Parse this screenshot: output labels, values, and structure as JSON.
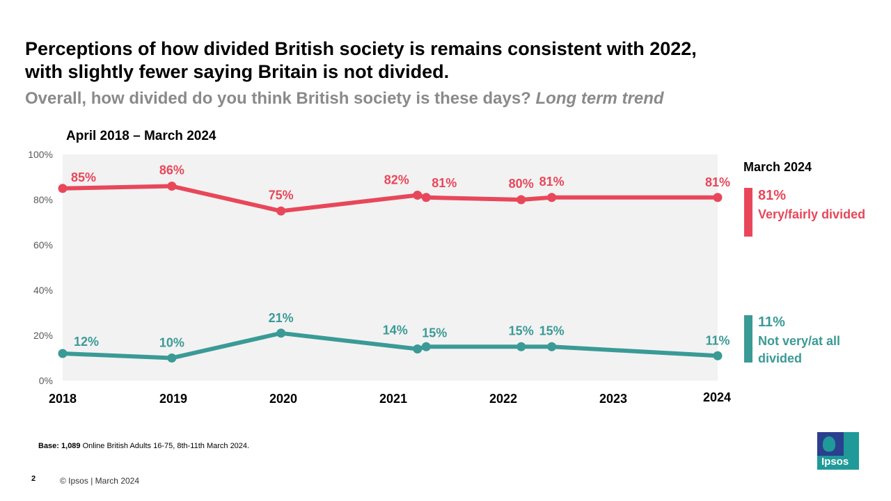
{
  "header": {
    "title_line1": "Perceptions of how divided British society is remains consistent with 2022,",
    "title_line2": "with slightly fewer saying Britain is not divided.",
    "subtitle_question": "Overall, how divided do you think British society is these days? ",
    "subtitle_emphasis": "Long term trend",
    "period": "April 2018 – March 2024"
  },
  "colors": {
    "divided": "#e8475a",
    "not_divided": "#3a9a96",
    "plot_background": "#f2f2f2"
  },
  "chart_data": {
    "type": "line",
    "title": "Overall, how divided do you think British society is these days? Long term trend",
    "xlabel": "",
    "ylabel": "",
    "ylim": [
      0,
      100
    ],
    "xlim": [
      2018,
      2024
    ],
    "x_ticks": [
      "2018",
      "2019",
      "2020",
      "2021",
      "2022",
      "2023",
      "2024"
    ],
    "y_ticks": [
      "0%",
      "20%",
      "40%",
      "60%",
      "80%",
      "100%"
    ],
    "grid": false,
    "x": [
      2018.0,
      2019.0,
      2020.0,
      2021.25,
      2021.33,
      2022.2,
      2022.48,
      2024.0
    ],
    "series": [
      {
        "name": "Very/fairly divided",
        "values": [
          85,
          86,
          75,
          82,
          81,
          80,
          81,
          81
        ],
        "labels": [
          "85%",
          "86%",
          "75%",
          "82%",
          "81%",
          "80%",
          "81%",
          "81%"
        ]
      },
      {
        "name": "Not very/at all divided",
        "values": [
          12,
          10,
          21,
          14,
          15,
          15,
          15,
          11
        ],
        "labels": [
          "12%",
          "10%",
          "21%",
          "14%",
          "15%",
          "15%",
          "15%",
          "11%"
        ]
      }
    ]
  },
  "legend": {
    "heading": "March 2024",
    "items": [
      {
        "value": "81%",
        "label": "Very/fairly divided"
      },
      {
        "value": "11%",
        "label": "Not very/at all divided"
      }
    ]
  },
  "footer": {
    "base_bold": "Base: 1,089",
    "base_text": " Online British Adults 16-75, 8th-11th March 2024.",
    "page_number": "2",
    "copyright": "© Ipsos | March 2024",
    "logo_text": "Ipsos"
  }
}
